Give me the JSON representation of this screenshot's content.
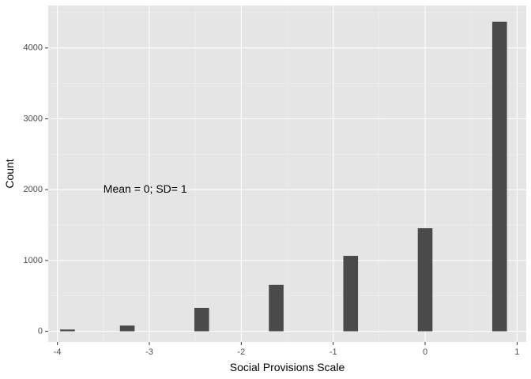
{
  "chart_data": {
    "type": "bar",
    "title": "",
    "xlabel": "Social Provisions Scale",
    "ylabel": "Count",
    "x": [
      -3.89,
      -3.24,
      -2.43,
      -1.62,
      -0.81,
      0.0,
      0.81
    ],
    "values": [
      25,
      80,
      330,
      655,
      1065,
      1455,
      4370
    ],
    "bar_width": 0.16,
    "xlim": [
      -4.1,
      1.1
    ],
    "ylim": [
      -150,
      4600
    ],
    "x_ticks": [
      -4,
      -3,
      -2,
      -1,
      0,
      1
    ],
    "x_tick_labels": [
      "-4",
      "-3",
      "-2",
      "-1",
      "0",
      "1"
    ],
    "y_ticks": [
      0,
      1000,
      2000,
      3000,
      4000
    ],
    "y_tick_labels": [
      "0",
      "1000",
      "2000",
      "3000",
      "4000"
    ],
    "grid": true,
    "annotation": {
      "text": "Mean = 0; SD= 1",
      "x": -3.5,
      "y": 2000
    },
    "colors": {
      "panel_background": "#e5e5e5",
      "grid_major": "#ffffff",
      "grid_minor": "#f0f0f0",
      "bar_fill": "#4a4a4a",
      "tick_text": "#4d4d4d",
      "tick_mark": "#333333"
    }
  }
}
